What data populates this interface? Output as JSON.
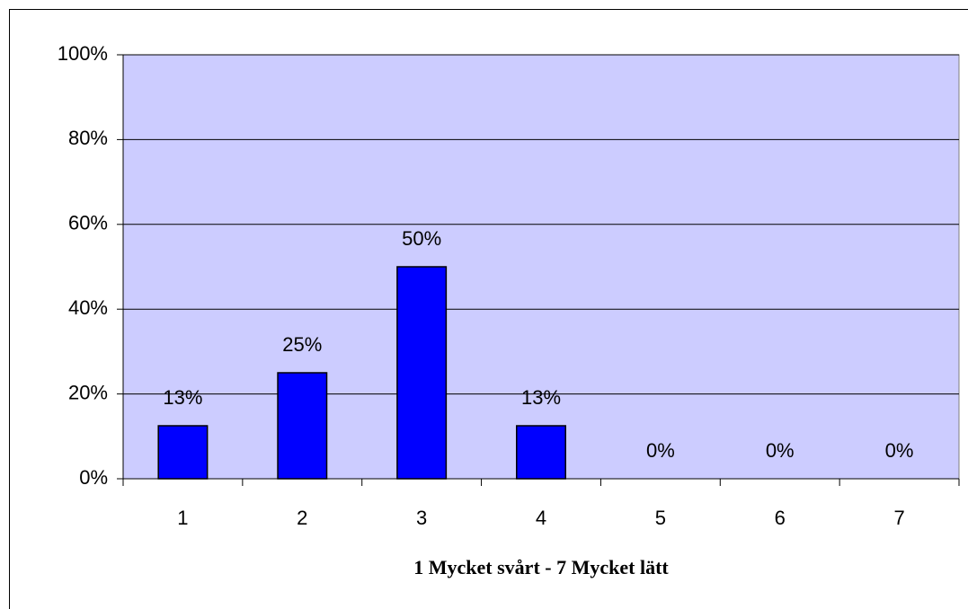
{
  "chart_data": {
    "type": "bar",
    "x_label": "1 Mycket svårt - 7 Mycket lätt",
    "categories": [
      "1",
      "2",
      "3",
      "4",
      "5",
      "6",
      "7"
    ],
    "values": [
      12.5,
      25,
      50,
      12.5,
      0,
      0,
      0
    ],
    "value_labels": [
      "13%",
      "25%",
      "50%",
      "13%",
      "0%",
      "0%",
      "0%"
    ],
    "color": "#0000ff",
    "ylim": [
      0,
      100
    ],
    "yticks": [
      {
        "value": 0,
        "label": "0%"
      },
      {
        "value": 20,
        "label": "20%"
      },
      {
        "value": 40,
        "label": "40%"
      },
      {
        "value": 60,
        "label": "60%"
      },
      {
        "value": 80,
        "label": "80%"
      },
      {
        "value": 100,
        "label": "100%"
      }
    ],
    "grid": true
  }
}
